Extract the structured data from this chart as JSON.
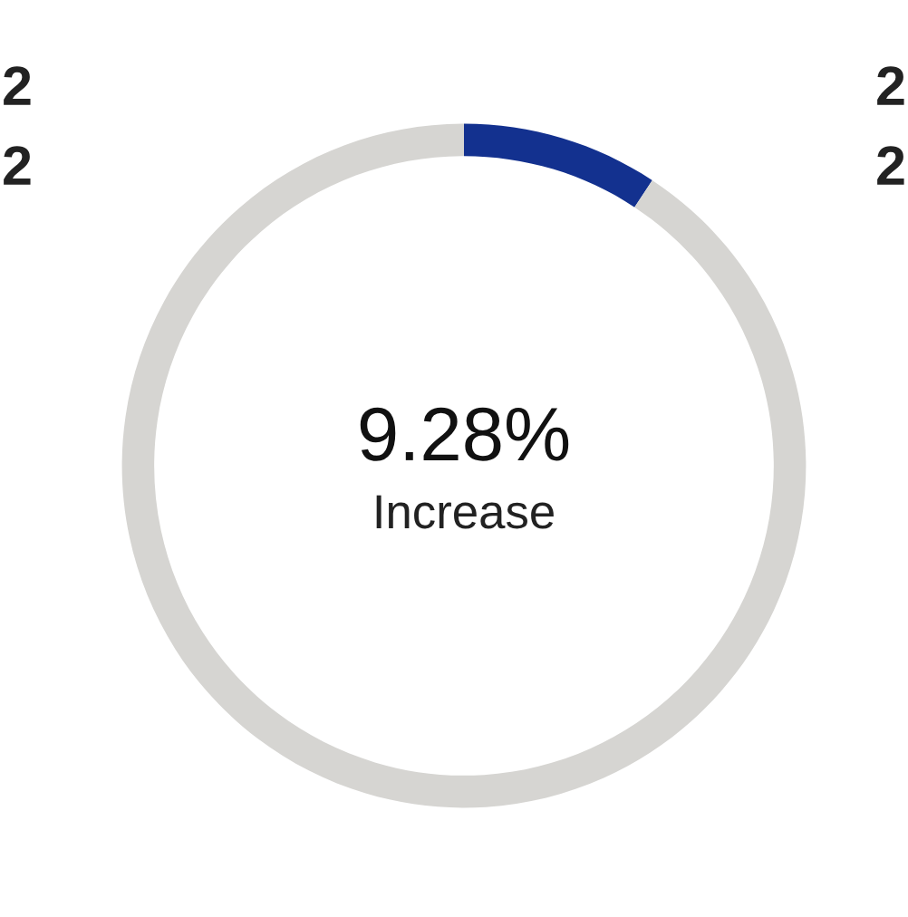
{
  "chart_data": {
    "type": "donut",
    "categories": [
      null,
      null
    ],
    "values": [
      9.28,
      90.72
    ],
    "colors": [
      "#13318f",
      "#d6d5d2"
    ],
    "value_labels": [
      "9.28%",
      null
    ],
    "annotations": [
      "Increase",
      "2",
      "2",
      "2",
      "2"
    ]
  }
}
